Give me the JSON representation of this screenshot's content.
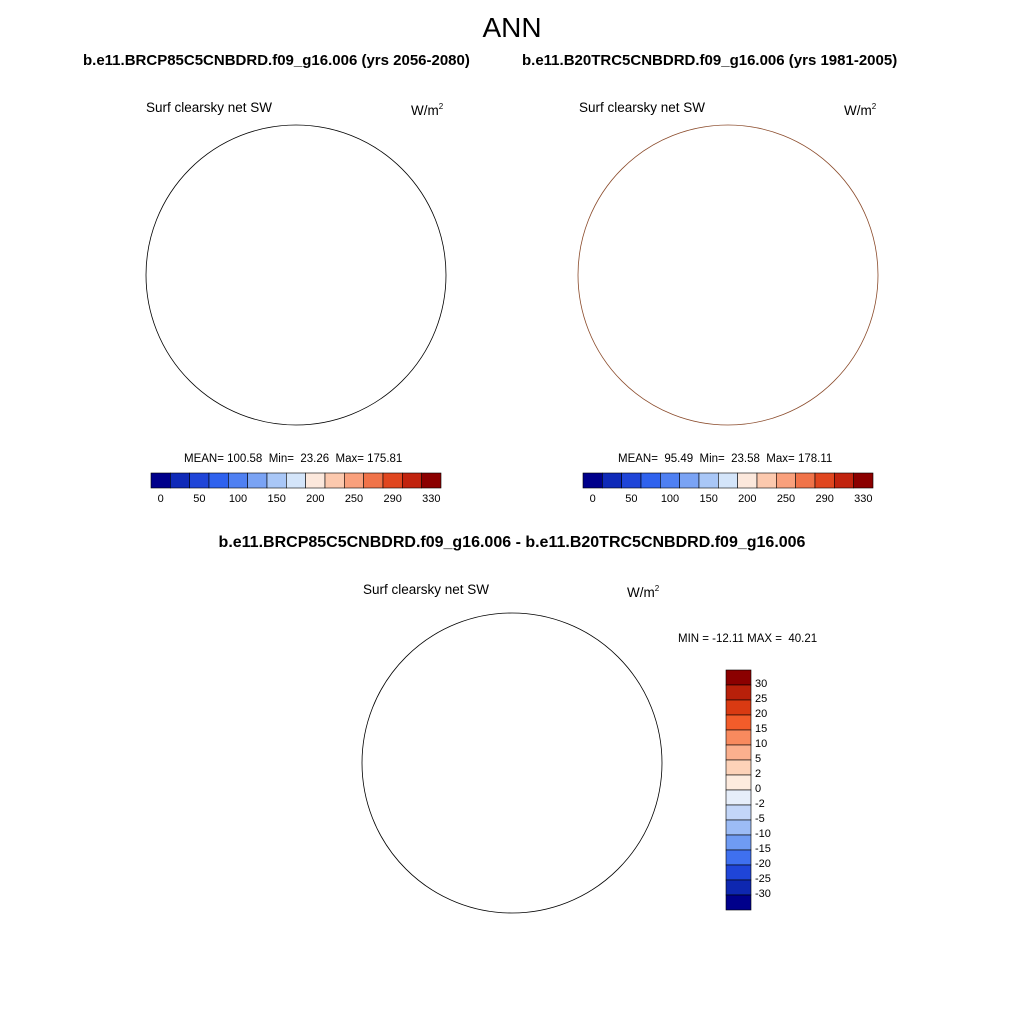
{
  "title": "ANN",
  "panels": [
    {
      "run_title": "b.e11.BRCP85C5CNBDRD.f09_g16.006 (yrs 2056-2080)",
      "variable": "Surf clearsky net SW",
      "units_base": "W/m",
      "units_exp": "2",
      "stats": "MEAN= 100.58  Min=  23.26  Max= 175.81"
    },
    {
      "run_title": "b.e11.B20TRC5CNBDRD.f09_g16.006 (yrs 1981-2005)",
      "variable": "Surf clearsky net SW",
      "units_base": "W/m",
      "units_exp": "2",
      "stats": "MEAN=  95.49  Min=  23.58  Max= 178.11"
    }
  ],
  "difference": {
    "title": "b.e11.BRCP85C5CNBDRD.f09_g16.006 - b.e11.B20TRC5CNBDRD.f09_g16.006",
    "variable": "Surf clearsky net SW",
    "units_base": "W/m",
    "units_exp": "2",
    "stats": "MIN = -12.11 MAX =  40.21"
  },
  "colors": {
    "ocean_pale": "#d6e7fb",
    "ring_mid": "#a9c8f6",
    "ring_blue": "#7aa4f2",
    "ring_deep": "#4d7cf0",
    "ring_strong": "#2f5ded",
    "continent": "#1b45e3",
    "coast": "#000000"
  },
  "chart_data": [
    {
      "type": "heatmap",
      "projection": "south-polar-stereographic",
      "title": "b.e11.BRCP85C5CNBDRD.f09_g16.006 (yrs 2056-2080)",
      "variable": "Surf clearsky net SW",
      "units": "W/m2",
      "mean": 100.58,
      "min": 23.26,
      "max": 175.81,
      "colorbar": {
        "orientation": "horizontal",
        "tick_labels": [
          "0",
          "50",
          "100",
          "150",
          "200",
          "250",
          "290",
          "330"
        ],
        "colors": [
          "#00008b",
          "#0f2ab8",
          "#1f45d8",
          "#2f62ee",
          "#4f80f2",
          "#7aa3f4",
          "#a9c7f7",
          "#d4e5fa",
          "#fce8dc",
          "#fcc9ae",
          "#f9a07c",
          "#f07349",
          "#e0461f",
          "#c1230e",
          "#8b0000"
        ]
      }
    },
    {
      "type": "heatmap",
      "projection": "south-polar-stereographic",
      "title": "b.e11.B20TRC5CNBDRD.f09_g16.006 (yrs 1981-2005)",
      "variable": "Surf clearsky net SW",
      "units": "W/m2",
      "mean": 95.49,
      "min": 23.58,
      "max": 178.11,
      "colorbar": {
        "orientation": "horizontal",
        "tick_labels": [
          "0",
          "50",
          "100",
          "150",
          "200",
          "250",
          "290",
          "330"
        ],
        "colors": [
          "#00008b",
          "#0f2ab8",
          "#1f45d8",
          "#2f62ee",
          "#4f80f2",
          "#7aa3f4",
          "#a9c7f7",
          "#d4e5fa",
          "#fce8dc",
          "#fcc9ae",
          "#f9a07c",
          "#f07349",
          "#e0461f",
          "#c1230e",
          "#8b0000"
        ]
      }
    },
    {
      "type": "heatmap",
      "projection": "south-polar-stereographic",
      "title": "b.e11.BRCP85C5CNBDRD.f09_g16.006 - b.e11.B20TRC5CNBDRD.f09_g16.006",
      "variable": "Surf clearsky net SW",
      "units": "W/m2",
      "min": -12.11,
      "max": 40.21,
      "colorbar": {
        "orientation": "vertical",
        "tick_labels": [
          "30",
          "25",
          "20",
          "15",
          "10",
          "5",
          "2",
          "0",
          "-2",
          "-5",
          "-10",
          "-15",
          "-20",
          "-25",
          "-30"
        ],
        "colors": [
          "#8b0000",
          "#b8200a",
          "#d93a12",
          "#f25c2a",
          "#f88a5e",
          "#fbb08e",
          "#fdd2b8",
          "#fdebde",
          "#e6eefa",
          "#c3d6f8",
          "#9cbcf6",
          "#6f9bf3",
          "#3f70ef",
          "#1f45d8",
          "#0e27b0",
          "#00008b"
        ]
      }
    }
  ]
}
